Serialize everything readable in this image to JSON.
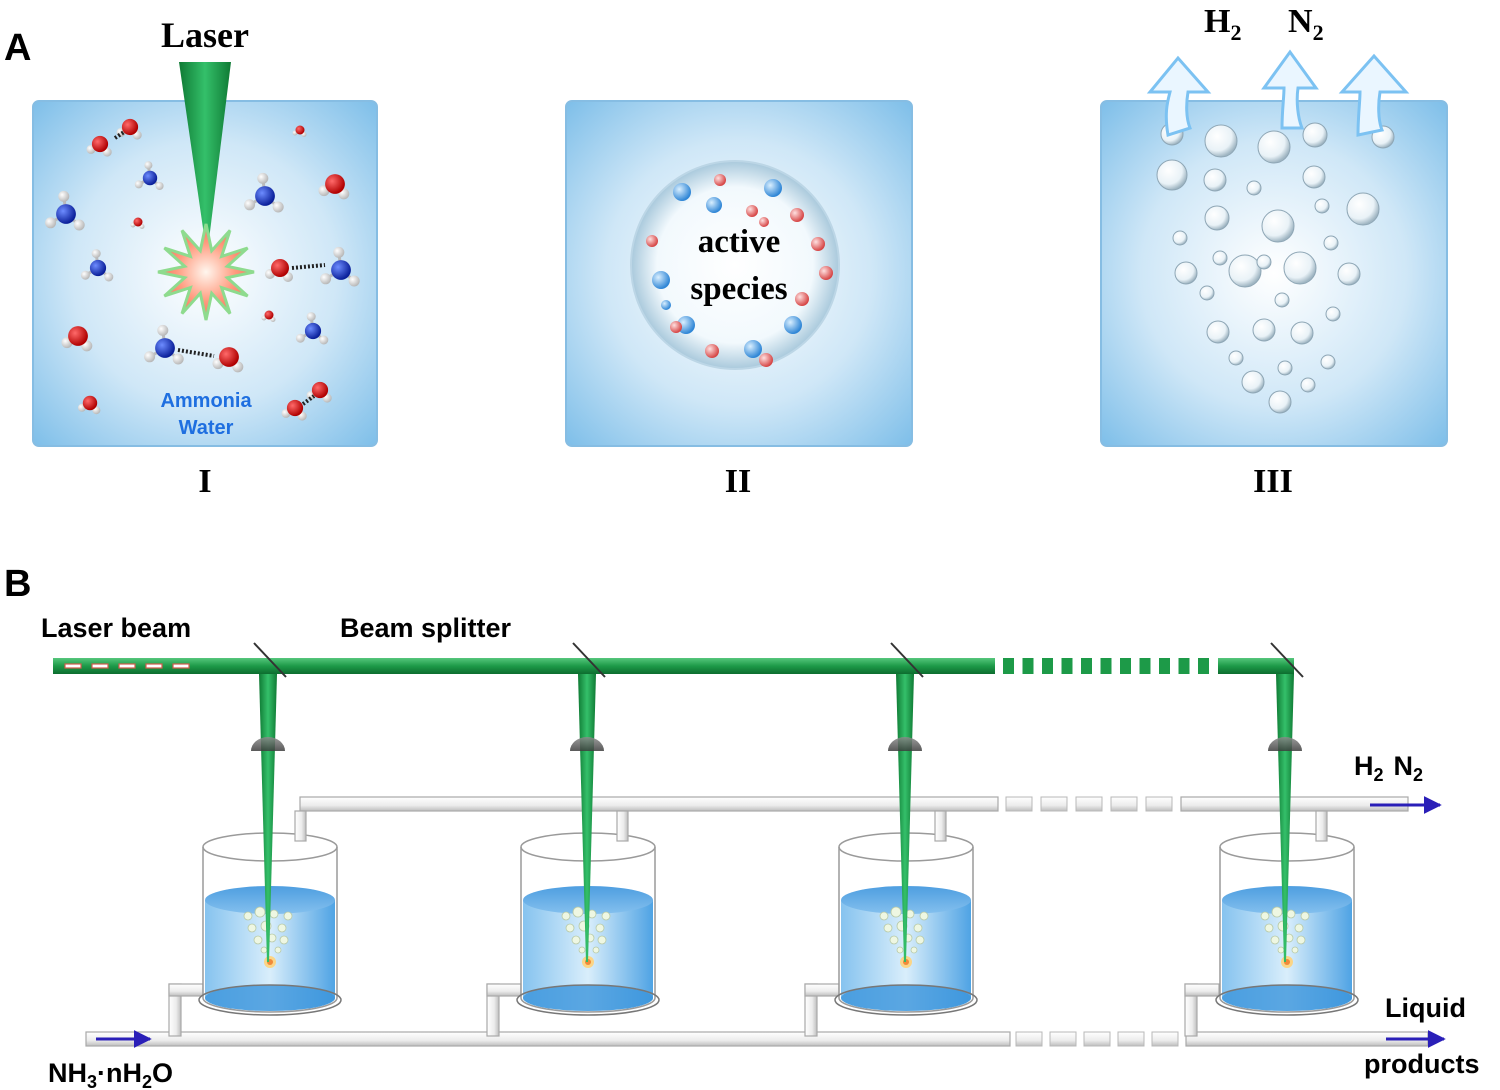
{
  "panel_a": {
    "label": "A",
    "laser_label": "Laser",
    "step1": {
      "roman": "I",
      "text_line1": "Ammonia",
      "text_line2": "Water"
    },
    "step2": {
      "roman": "II",
      "text_line1": "active",
      "text_line2": "species"
    },
    "step3": {
      "roman": "III",
      "gas1": "H",
      "gas1_sub": "2",
      "gas2": "N",
      "gas2_sub": "2"
    }
  },
  "panel_b": {
    "label": "B",
    "laser_beam_label": "Laser beam",
    "beam_splitter_label": "Beam splitter",
    "gas_out_h": "H",
    "gas_out_h_sub": "2",
    "gas_out_n": "N",
    "gas_out_n_sub": "2",
    "inlet_part1": "NH",
    "inlet_sub1": "3",
    "inlet_part2": "·nH",
    "inlet_sub2": "2",
    "inlet_part3": "O",
    "outlet_line1": "Liquid",
    "outlet_line2": "products"
  },
  "colors": {
    "laser_green": "#1f9a48",
    "water_blue": "#59a8e6",
    "flow_arrow": "#2a1fb8",
    "nitrogen": "#1f3fc4",
    "oxygen": "#d81616",
    "hydrogen": "#f2f2f2",
    "label_blue": "#1f6fe0"
  }
}
